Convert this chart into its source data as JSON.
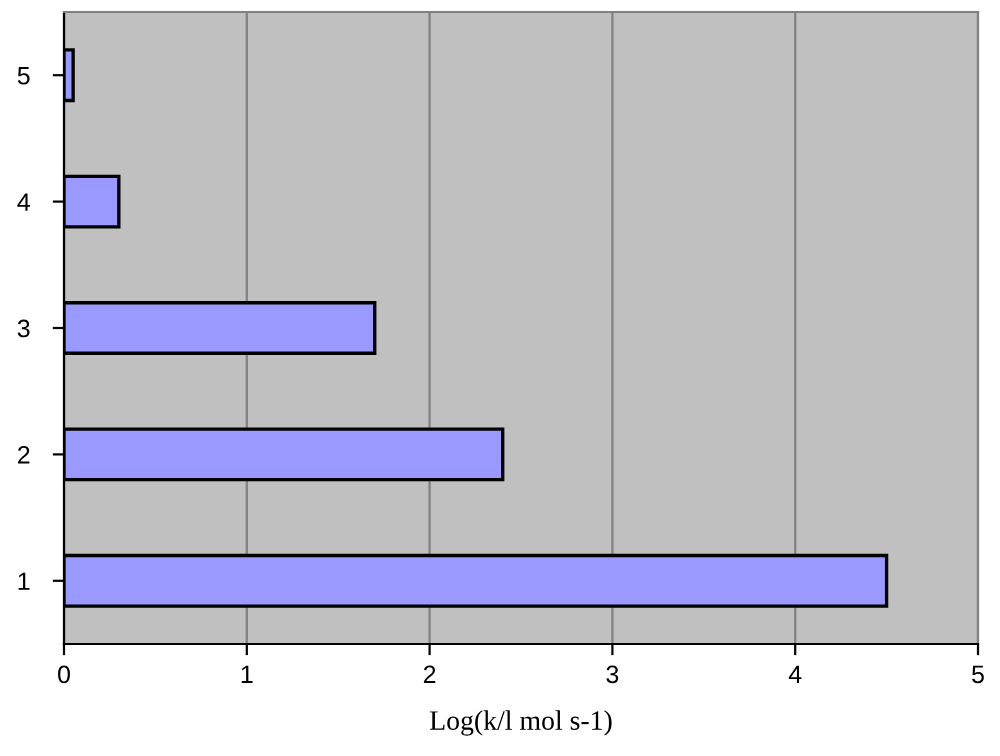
{
  "chart_data": {
    "type": "bar",
    "orientation": "horizontal",
    "categories": [
      "5",
      "4",
      "3",
      "2",
      "1"
    ],
    "values": [
      0.05,
      0.3,
      1.7,
      2.4,
      4.5
    ],
    "color": "#9999ff",
    "xlabel": "Log(k/l mol s-1)",
    "xlim": [
      0,
      5
    ],
    "xticks": [
      0,
      1,
      2,
      3,
      4,
      5
    ],
    "grid": "x",
    "legend": false
  }
}
